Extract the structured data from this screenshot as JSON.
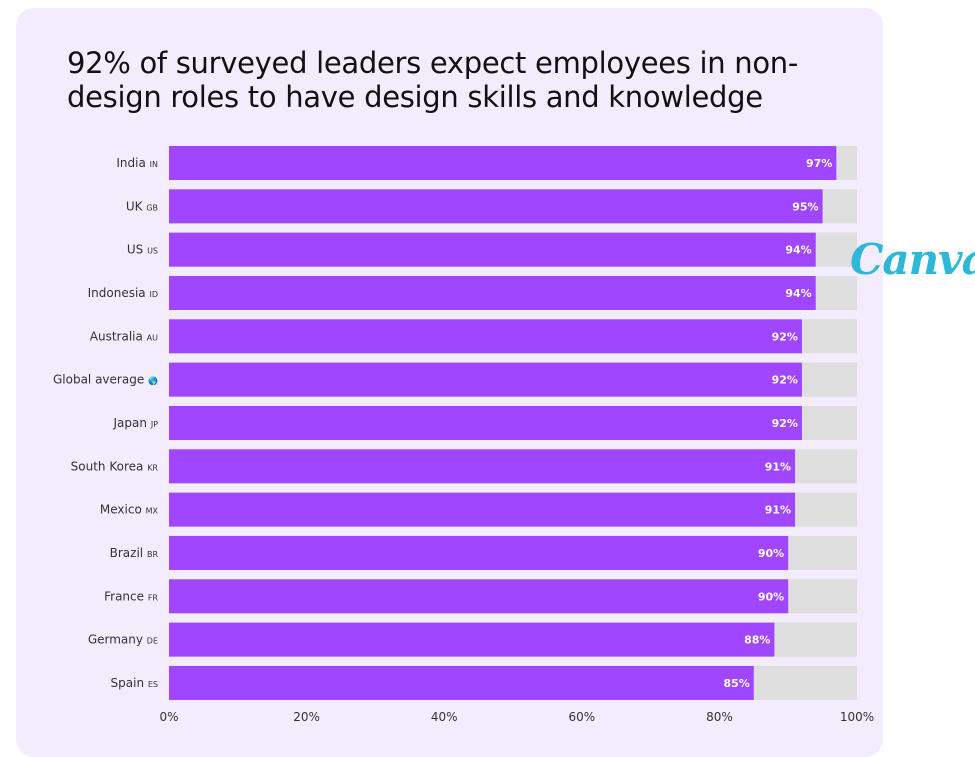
{
  "title": "92% of surveyed leaders expect employees in non-design roles to have design skills and knowledge",
  "logo": "Canva",
  "colors": {
    "bar": "#a146ff",
    "track": "#dedede",
    "background": "#f2ecfd",
    "logo": "#2fb7d8"
  },
  "chart_data": {
    "type": "bar",
    "orientation": "horizontal",
    "title": "92% of surveyed leaders expect employees in non-design roles to have design skills and knowledge",
    "categories": [
      {
        "name": "India",
        "code": "IN"
      },
      {
        "name": "UK",
        "code": "GB"
      },
      {
        "name": "US",
        "code": "US"
      },
      {
        "name": "Indonesia",
        "code": "ID"
      },
      {
        "name": "Australia",
        "code": "AU"
      },
      {
        "name": "Global average",
        "code": "🌎"
      },
      {
        "name": "Japan",
        "code": "JP"
      },
      {
        "name": "South Korea",
        "code": "KR"
      },
      {
        "name": "Mexico",
        "code": "MX"
      },
      {
        "name": "Brazil",
        "code": "BR"
      },
      {
        "name": "France",
        "code": "FR"
      },
      {
        "name": "Germany",
        "code": "DE"
      },
      {
        "name": "Spain",
        "code": "ES"
      }
    ],
    "values": [
      97,
      95,
      94,
      94,
      92,
      92,
      92,
      91,
      91,
      90,
      90,
      88,
      85
    ],
    "value_suffix": "%",
    "xlim": [
      0,
      100
    ],
    "xticks": [
      "0%",
      "20%",
      "40%",
      "60%",
      "80%",
      "100%"
    ],
    "xlabel": "",
    "ylabel": ""
  }
}
